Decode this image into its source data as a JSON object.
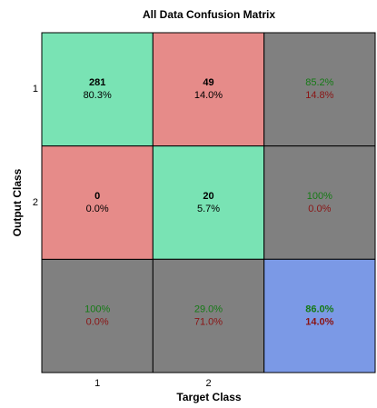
{
  "chart_data": {
    "type": "confusion",
    "title": "All Data Confusion Matrix",
    "xlabel": "Target Class",
    "ylabel": "Output Class",
    "x_categories": [
      "1",
      "2"
    ],
    "y_categories": [
      "1",
      "2"
    ],
    "counts": [
      [
        281,
        49
      ],
      [
        0,
        20
      ]
    ],
    "percents": {
      "values": [
        [
          80.3,
          14.0
        ],
        [
          0.0,
          5.7
        ]
      ],
      "value_labels": [
        [
          "80.3%",
          "14.0%"
        ],
        [
          "0.0%",
          "5.7%"
        ]
      ]
    },
    "row_correct": {
      "values": [
        85.2,
        100
      ],
      "value_labels": [
        "85.2%",
        "100%"
      ]
    },
    "row_error": {
      "values": [
        14.8,
        0.0
      ],
      "value_labels": [
        "14.8%",
        "0.0%"
      ]
    },
    "col_correct": {
      "values": [
        100,
        29.0
      ],
      "value_labels": [
        "100%",
        "29.0%"
      ]
    },
    "col_error": {
      "values": [
        0.0,
        71.0
      ],
      "value_labels": [
        "0.0%",
        "71.0%"
      ]
    },
    "overall_correct": {
      "value": 86.0,
      "value_label": "86.0%"
    },
    "overall_error": {
      "value": 14.0,
      "value_label": "14.0%"
    },
    "colors": {
      "correct": "#79e3b4",
      "incorrect": "#e68b89",
      "summary": "#808080",
      "overall": "#7b99e6",
      "correct_text": "#157a15",
      "error_text": "#8a1414"
    }
  }
}
